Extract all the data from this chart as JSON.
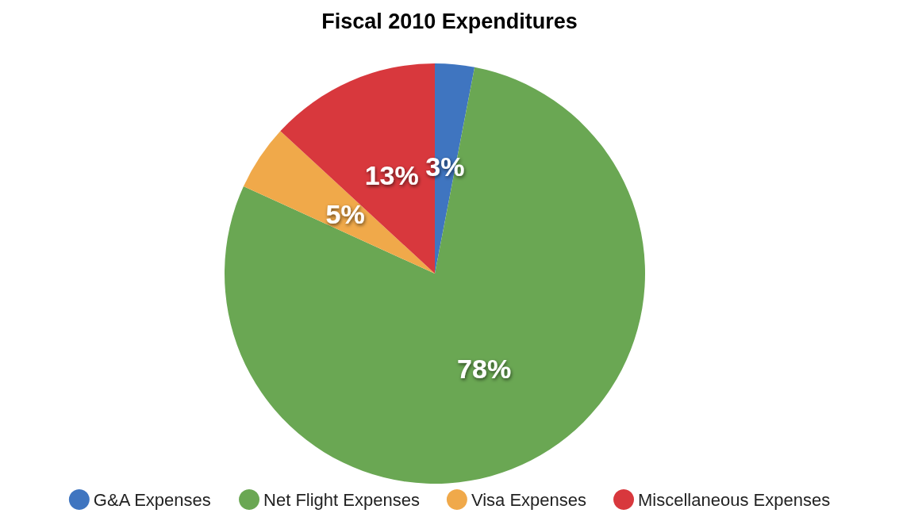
{
  "chart_data": {
    "type": "pie",
    "title": "Fiscal 2010 Expenditures",
    "categories": [
      "G&A Expenses",
      "Net Flight Expenses",
      "Visa Expenses",
      "Miscellaneous Expenses"
    ],
    "values": [
      3,
      78,
      5,
      13
    ],
    "colors": [
      "#3f75c0",
      "#6aa753",
      "#f0a94a",
      "#d8383d"
    ],
    "value_labels": [
      "3%",
      "78%",
      "5%",
      "13%"
    ],
    "legend": "bottom"
  }
}
